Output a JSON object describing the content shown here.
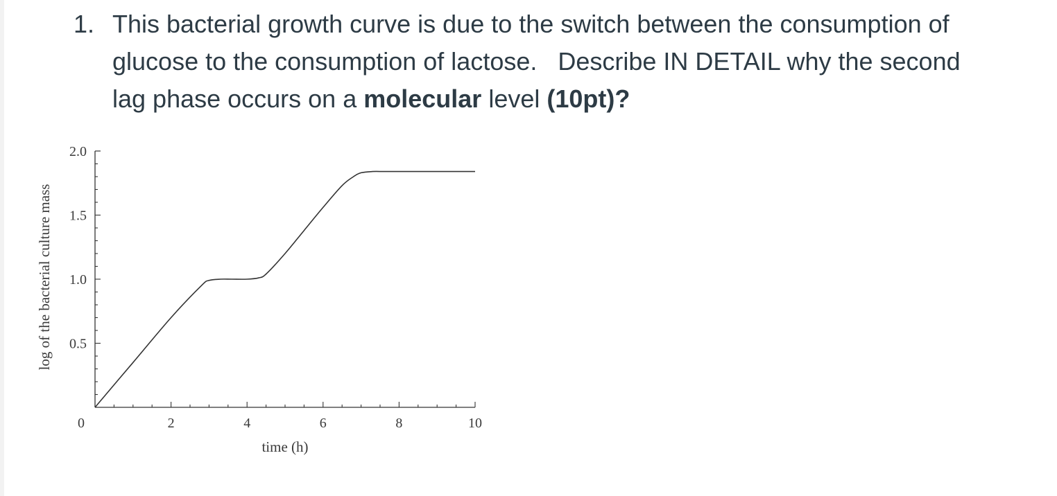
{
  "question": {
    "number": "1.",
    "line1": "This bacterial growth curve is due to the switch between the consumption of",
    "line2": "glucose to the consumption of lactose.   Describe IN DETAIL why the second",
    "line3_pre": "lag phase occurs on a ",
    "line3_bold1": "molecular",
    "line3_mid": " level ",
    "line3_bold2": "(10pt)?"
  },
  "chart_data": {
    "type": "line",
    "xlabel": "time (h)",
    "ylabel": "log of the bacterial culture mass",
    "xlim": [
      0,
      10
    ],
    "ylim": [
      0,
      2.0
    ],
    "x_ticks": [
      0,
      2,
      4,
      6,
      8,
      10
    ],
    "x_tick_labels": [
      "0",
      "2",
      "4",
      "6",
      "8",
      "10"
    ],
    "y_ticks": [
      0.5,
      1.0,
      1.5,
      2.0
    ],
    "y_tick_labels": [
      "0.5",
      "1.0",
      "1.5",
      "2.0"
    ],
    "grid": false,
    "series": [
      {
        "x": [
          0,
          1,
          2,
          2.8,
          3.0,
          3.3,
          3.6,
          4.0,
          4.3,
          4.5,
          5.0,
          5.5,
          6.0,
          6.5,
          6.8,
          7.0,
          7.3,
          7.6,
          8.0,
          9.0,
          10.0
        ],
        "y": [
          0,
          0.35,
          0.7,
          0.95,
          0.99,
          1.0,
          1.0,
          1.0,
          1.01,
          1.04,
          1.2,
          1.38,
          1.56,
          1.73,
          1.8,
          1.83,
          1.84,
          1.84,
          1.84,
          1.84,
          1.84
        ]
      }
    ]
  }
}
